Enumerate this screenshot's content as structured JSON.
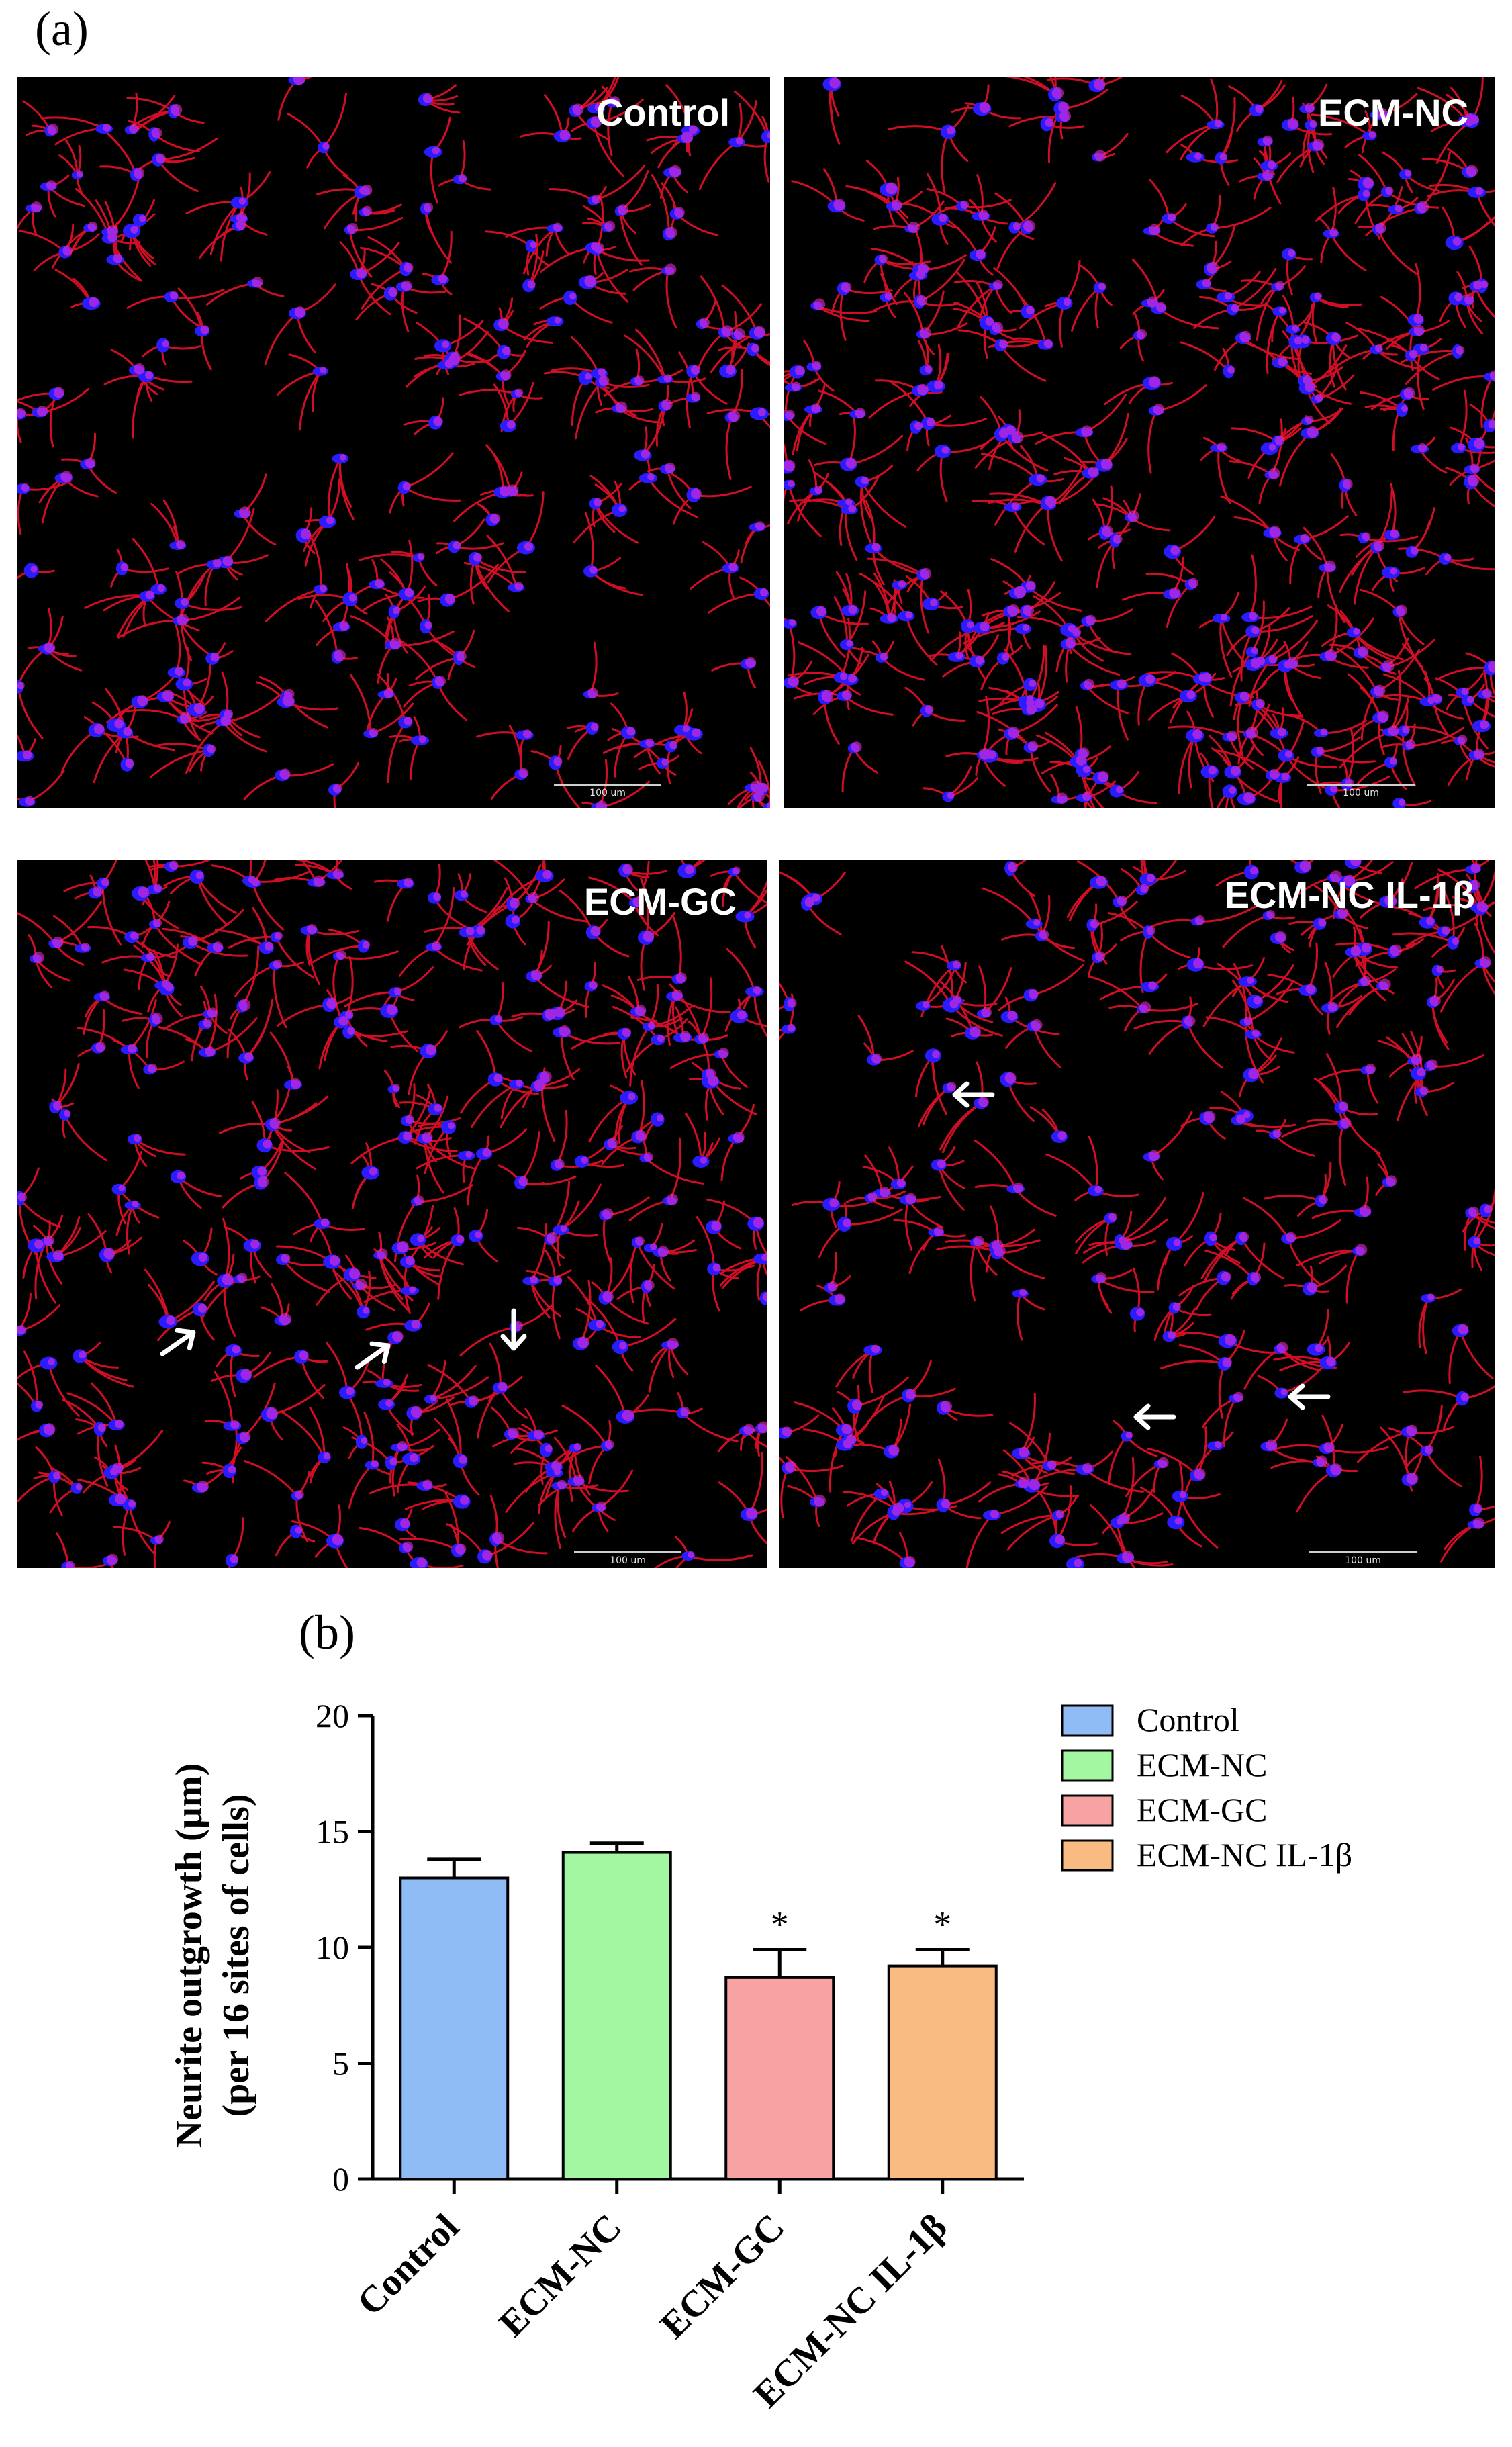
{
  "panel_a_label": "(a)",
  "panel_b_label": "(b)",
  "micrographs": [
    {
      "label": "Control",
      "scale_bar": "100 um",
      "arrows": []
    },
    {
      "label": "ECM-NC",
      "scale_bar": "100 um",
      "arrows": []
    },
    {
      "label": "ECM-GC",
      "scale_bar": "100 um",
      "arrows": [
        "up-right",
        "up-right",
        "down"
      ]
    },
    {
      "label": "ECM-NC  IL-1β",
      "scale_bar": "100 um",
      "arrows": [
        "left",
        "left",
        "left"
      ]
    }
  ],
  "colors": {
    "cytoskeleton": "#e8102a",
    "nuclei": "#2a1cff",
    "bar_control": "#8fbcf5",
    "bar_ecm_nc": "#a3f7a0",
    "bar_ecm_gc": "#f7a3a3",
    "bar_ecm_nc_il1b": "#f9bb82"
  },
  "chart_data": {
    "type": "bar",
    "categories": [
      "Control",
      "ECM-NC",
      "ECM-GC",
      "ECM-NC IL-1β"
    ],
    "values": [
      13.0,
      14.1,
      8.7,
      9.2
    ],
    "error": [
      0.8,
      0.4,
      1.2,
      0.7
    ],
    "significance": [
      "",
      "",
      "*",
      "*"
    ],
    "ylabel_line1": "Neurite outgrowth (µm)",
    "ylabel_line2": "(per 16 sites of cells)",
    "xlabel": "",
    "ylim": [
      0,
      20
    ],
    "yticks": [
      0,
      5,
      10,
      15,
      20
    ],
    "legend": [
      "Control",
      "ECM-NC",
      "ECM-GC",
      "ECM-NC IL-1β"
    ],
    "legend_position": "right",
    "grid": false
  }
}
